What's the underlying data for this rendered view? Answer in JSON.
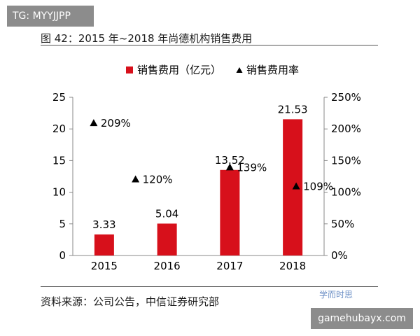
{
  "tg_badge": "TG: MYYJJPP",
  "figure_title": "图 42：2015 年~2018 年尚德机构销售费用",
  "source_note": "资料来源：公司公告，中信证券研究部",
  "watermark_logo": "学而时思",
  "watermark_badge": "gamehubayx.com",
  "colors": {
    "bar": "#d7101b",
    "marker": "#000000",
    "axis": "#888888"
  },
  "chart_data": {
    "type": "bar",
    "categories": [
      "2015",
      "2016",
      "2017",
      "2018"
    ],
    "series": [
      {
        "name": "销售费用（亿元）",
        "type": "bar",
        "axis": "left",
        "values": [
          3.33,
          5.04,
          13.52,
          21.53
        ]
      },
      {
        "name": "销售费用率",
        "type": "scatter",
        "axis": "right",
        "values": [
          209,
          120,
          139,
          109
        ]
      }
    ],
    "y_left": {
      "min": 0,
      "max": 25,
      "ticks": [
        "0",
        "5",
        "10",
        "15",
        "20",
        "25"
      ]
    },
    "y_right": {
      "min": 0,
      "max": 250,
      "ticks": [
        "0%",
        "50%",
        "100%",
        "150%",
        "200%",
        "250%"
      ]
    },
    "bar_labels": [
      "3.33",
      "5.04",
      "13.52",
      "21.53"
    ],
    "marker_labels": [
      "209%",
      "120%",
      "139%",
      "109%"
    ],
    "legend_position": "top",
    "grid": false
  }
}
